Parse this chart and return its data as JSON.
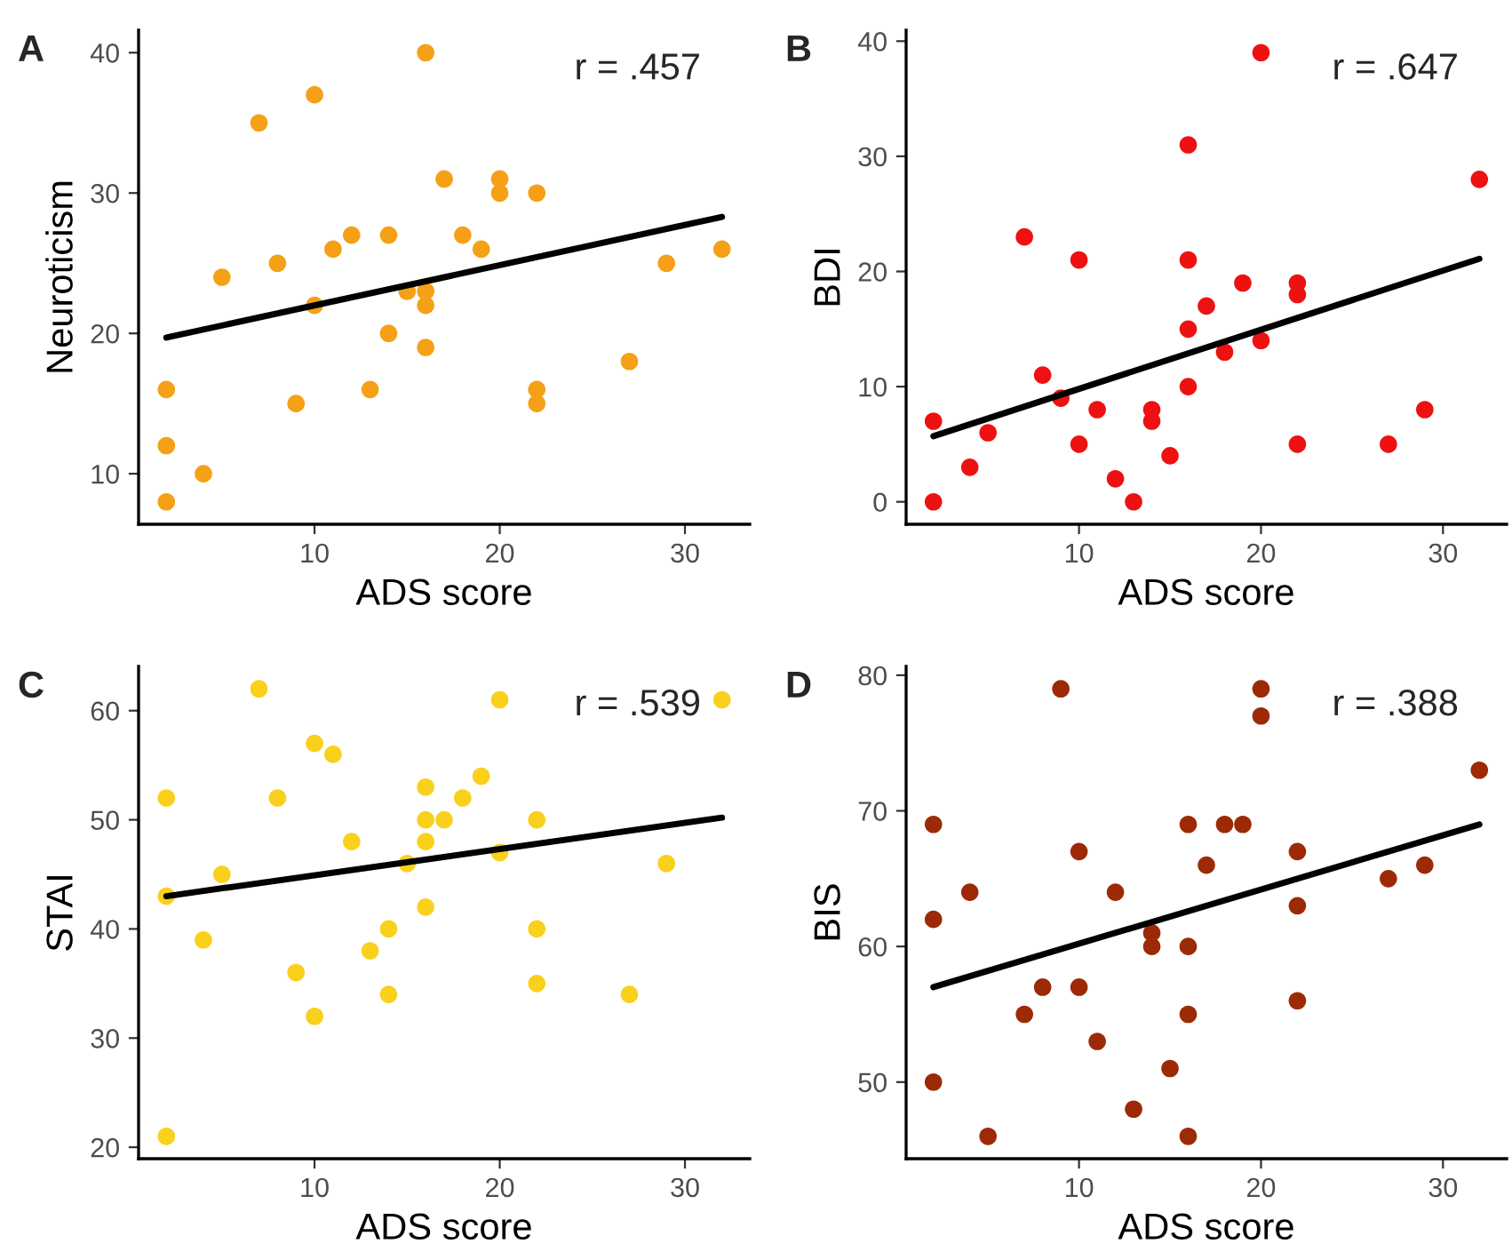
{
  "chart_data": [
    {
      "type": "scatter",
      "title": "A",
      "xlabel": "ADS score",
      "ylabel": "Neuroticism",
      "xlim": [
        0.5,
        33.5
      ],
      "ylim": [
        6.4,
        41.6
      ],
      "xticks": [
        10,
        20,
        30
      ],
      "yticks": [
        10,
        20,
        30,
        40
      ],
      "grid": false,
      "annotations": [
        "r = .457"
      ],
      "series": [
        {
          "type": "scatter",
          "color": "#f5a016",
          "x": [
            2,
            2,
            2,
            4,
            5,
            7,
            8,
            9,
            10,
            10,
            11,
            12,
            13,
            14,
            14,
            15,
            16,
            16,
            16,
            16,
            17,
            18,
            19,
            20,
            20,
            22,
            22,
            22,
            27,
            29,
            32
          ],
          "values": [
            16,
            12,
            8,
            10,
            24,
            35,
            25,
            15,
            37,
            22,
            26,
            27,
            16,
            27,
            20,
            23,
            40,
            23,
            22,
            19,
            31,
            27,
            26,
            31,
            30,
            30,
            16,
            15,
            18,
            25,
            26
          ]
        },
        {
          "type": "line",
          "color": "#000000",
          "x": [
            2,
            32
          ],
          "values": [
            19.7,
            28.3
          ]
        }
      ]
    },
    {
      "type": "scatter",
      "title": "B",
      "xlabel": "ADS score",
      "ylabel": "BDI",
      "xlim": [
        0.5,
        33.5
      ],
      "ylim": [
        -1.95,
        40.95
      ],
      "xticks": [
        10,
        20,
        30
      ],
      "yticks": [
        0,
        10,
        20,
        30,
        40
      ],
      "grid": false,
      "annotations": [
        "r = .647"
      ],
      "series": [
        {
          "type": "scatter",
          "color": "#ee1111",
          "x": [
            2,
            2,
            4,
            5,
            7,
            8,
            9,
            10,
            10,
            11,
            12,
            13,
            14,
            14,
            15,
            16,
            16,
            16,
            16,
            17,
            18,
            19,
            20,
            20,
            22,
            22,
            22,
            27,
            29,
            32
          ],
          "values": [
            7,
            0,
            3,
            6,
            23,
            11,
            9,
            21,
            5,
            8,
            2,
            0,
            8,
            7,
            4,
            31,
            21,
            15,
            10,
            17,
            13,
            19,
            39,
            14,
            19,
            18,
            5,
            5,
            8,
            28
          ]
        },
        {
          "type": "line",
          "color": "#000000",
          "x": [
            2,
            32
          ],
          "values": [
            5.7,
            21.1
          ]
        }
      ]
    },
    {
      "type": "scatter",
      "title": "C",
      "xlabel": "ADS score",
      "ylabel": "STAI",
      "xlim": [
        0.5,
        33.5
      ],
      "ylim": [
        18.95,
        64.05
      ],
      "xticks": [
        10,
        20,
        30
      ],
      "yticks": [
        20,
        30,
        40,
        50,
        60
      ],
      "grid": false,
      "annotations": [
        "r = .539"
      ],
      "series": [
        {
          "type": "scatter",
          "color": "#f9d01c",
          "x": [
            2,
            2,
            2,
            4,
            5,
            7,
            8,
            9,
            10,
            10,
            11,
            12,
            13,
            14,
            14,
            15,
            16,
            16,
            16,
            16,
            17,
            18,
            19,
            20,
            20,
            22,
            22,
            22,
            27,
            29,
            32
          ],
          "values": [
            52,
            43,
            21,
            39,
            45,
            62,
            52,
            36,
            57,
            32,
            56,
            48,
            38,
            40,
            34,
            46,
            53,
            50,
            48,
            42,
            50,
            52,
            54,
            61,
            47,
            50,
            40,
            35,
            34,
            46,
            61
          ]
        },
        {
          "type": "line",
          "color": "#000000",
          "x": [
            2,
            32
          ],
          "values": [
            43,
            50.2
          ]
        }
      ]
    },
    {
      "type": "scatter",
      "title": "D",
      "xlabel": "ADS score",
      "ylabel": "BIS",
      "xlim": [
        0.5,
        33.5
      ],
      "ylim": [
        44.35,
        80.65
      ],
      "xticks": [
        10,
        20,
        30
      ],
      "yticks": [
        50,
        60,
        70,
        80
      ],
      "grid": false,
      "annotations": [
        "r = .388"
      ],
      "series": [
        {
          "type": "scatter",
          "color": "#9c2a06",
          "x": [
            2,
            2,
            2,
            4,
            5,
            7,
            8,
            9,
            10,
            10,
            11,
            12,
            13,
            14,
            14,
            15,
            16,
            16,
            16,
            16,
            17,
            18,
            19,
            20,
            20,
            22,
            22,
            22,
            27,
            29,
            32
          ],
          "values": [
            69,
            62,
            50,
            64,
            46,
            55,
            57,
            79,
            67,
            57,
            53,
            64,
            48,
            61,
            60,
            51,
            69,
            60,
            55,
            46,
            66,
            69,
            69,
            79,
            77,
            67,
            63,
            56,
            65,
            66,
            73
          ]
        },
        {
          "type": "line",
          "color": "#000000",
          "x": [
            2,
            32
          ],
          "values": [
            57,
            69
          ]
        }
      ]
    }
  ]
}
